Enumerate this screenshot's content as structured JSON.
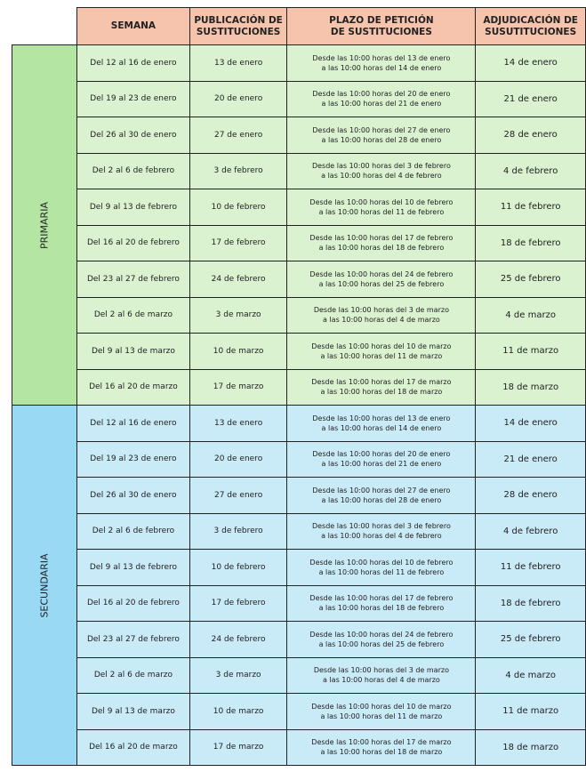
{
  "headers": [
    "SEMANA",
    "PUBLICACIÓN DE\nSUSTITUCIONES",
    "PLAZO DE PETICIÓN\nDE SUSTITUCIONES",
    "ADJUDICACIÓN DE\nSUSUTITUCIONES"
  ],
  "colors": {
    "header": "#f6c3ac",
    "primaria_cell": "#daf2d0",
    "primaria_label": "#b4e5a2",
    "secundaria_cell": "#c9eaf7",
    "secundaria_label": "#9ad9f3"
  },
  "groups": [
    {
      "label": "PRIMARIA",
      "rows": [
        [
          "Del 12 al 16 de enero",
          "13 de enero",
          "Desde las 10:00 horas del 13 de enero\na las 10:00 horas del 14 de enero",
          "14 de enero"
        ],
        [
          "Del 19 al 23 de enero",
          "20 de enero",
          "Desde las 10:00 horas del 20 de enero\na las 10:00 horas del 21 de enero",
          "21 de enero"
        ],
        [
          "Del 26 al 30 de enero",
          "27 de enero",
          "Desde las 10:00 horas del 27 de enero\na las 10:00 horas del 28 de enero",
          "28 de enero"
        ],
        [
          "Del 2 al 6 de febrero",
          "3 de febrero",
          "Desde las 10:00 horas del 3 de febrero\na las 10:00 horas del 4 de febrero",
          "4 de febrero"
        ],
        [
          "Del 9 al 13 de febrero",
          "10 de febrero",
          "Desde las 10:00 horas del 10 de febrero\na las 10:00 horas del 11 de febrero",
          "11 de febrero"
        ],
        [
          "Del 16 al 20 de febrero",
          "17 de febrero",
          "Desde las 10:00 horas del 17 de febrero\na las 10:00 horas del 18 de febrero",
          "18 de febrero"
        ],
        [
          "Del 23 al 27 de febrero",
          "24 de febrero",
          "Desde las 10:00 horas del 24 de febrero\na las 10:00 horas del 25 de febrero",
          "25 de febrero"
        ],
        [
          "Del 2 al 6 de marzo",
          "3 de marzo",
          "Desde las 10:00 horas del 3 de marzo\na las 10:00 horas del 4 de marzo",
          "4 de marzo"
        ],
        [
          "Del 9 al 13 de marzo",
          "10 de marzo",
          "Desde las 10:00 horas del 10 de marzo\na las 10:00 horas del 11 de marzo",
          "11 de marzo"
        ],
        [
          "Del 16 al 20 de marzo",
          "17 de marzo",
          "Desde las 10:00 horas del 17 de marzo\na las 10:00 horas del 18 de marzo",
          "18 de marzo"
        ]
      ]
    },
    {
      "label": "SECUNDARIA",
      "rows": [
        [
          "Del 12 al 16 de enero",
          "13 de enero",
          "Desde las 10:00 horas del 13 de enero\na las 10:00 horas del 14 de enero",
          "14 de enero"
        ],
        [
          "Del 19 al 23 de enero",
          "20 de enero",
          "Desde las 10:00 horas del 20 de enero\na las 10:00 horas del 21 de enero",
          "21 de enero"
        ],
        [
          "Del 26 al 30 de enero",
          "27 de enero",
          "Desde las 10:00 horas del 27 de enero\na las 10:00 horas del 28 de enero",
          "28 de enero"
        ],
        [
          "Del 2 al 6 de febrero",
          "3 de febrero",
          "Desde las 10:00 horas del 3 de febrero\na las 10:00 horas del 4 de febrero",
          "4 de febrero"
        ],
        [
          "Del 9 al 13 de febrero",
          "10 de febrero",
          "Desde las 10:00 horas del 10 de febrero\na las 10:00 horas del 11 de febrero",
          "11 de febrero"
        ],
        [
          "Del 16 al 20 de febrero",
          "17 de febrero",
          "Desde las 10:00 horas del 17 de febrero\na las 10:00 horas del 18 de febrero",
          "18 de febrero"
        ],
        [
          "Del 23 al 27 de febrero",
          "24 de febrero",
          "Desde las 10:00 horas del 24 de febrero\na las 10:00 horas del 25 de febrero",
          "25 de febrero"
        ],
        [
          "Del 2 al 6 de marzo",
          "3 de marzo",
          "Desde las 10:00 horas del 3 de marzo\na las 10:00 horas del 4 de marzo",
          "4 de marzo"
        ],
        [
          "Del 9 al 13 de marzo",
          "10 de marzo",
          "Desde las 10:00 horas del 10 de marzo\na las 10:00 horas del 11 de marzo",
          "11 de marzo"
        ],
        [
          "Del 16 al 20 de marzo",
          "17 de marzo",
          "Desde las 10:00 horas del 17 de marzo\na las 10:00 horas del 18 de marzo",
          "18 de marzo"
        ]
      ]
    }
  ]
}
